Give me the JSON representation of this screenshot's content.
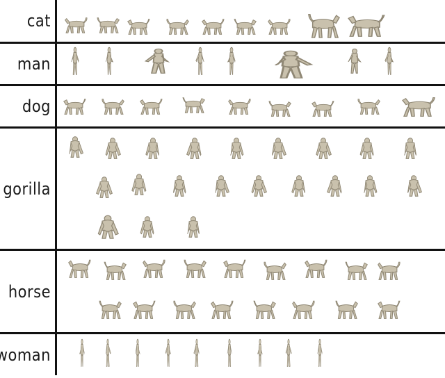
{
  "rows": [
    {
      "label": "cat",
      "count": 9
    },
    {
      "label": "man",
      "count": 8
    },
    {
      "label": "dog",
      "count": 9
    },
    {
      "label": "gorilla",
      "count": 21
    },
    {
      "label": "horse",
      "count": 17
    },
    {
      "label": "woman",
      "count": 9
    }
  ],
  "colors": {
    "shape_fill": "#c9c1ad",
    "shape_shade": "#8f8774",
    "line": "#111111"
  }
}
